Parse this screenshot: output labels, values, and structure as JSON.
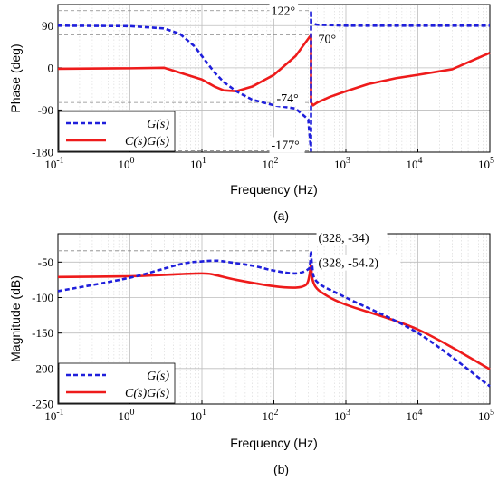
{
  "chart_data": [
    {
      "type": "line",
      "xlabel": "Frequency (Hz)",
      "ylabel": "Phase (deg)",
      "caption": "(a)",
      "x_scale": "log",
      "xlim": [
        0.1,
        100000
      ],
      "ylim": [
        -180,
        135
      ],
      "x_ticks": [
        0.1,
        1,
        10,
        100,
        1000,
        10000,
        100000
      ],
      "x_tick_labels": [
        "10^-1",
        "10^0",
        "10^1",
        "10^2",
        "10^3",
        "10^4",
        "10^5"
      ],
      "y_ticks": [
        -180,
        -90,
        0,
        90
      ],
      "y_tick_labels": [
        "-180",
        "-90",
        "0",
        "90"
      ],
      "grid": true,
      "legend_position": "bottom-left",
      "series": [
        {
          "name": "G(s)",
          "color": "#1f1fdb",
          "style": "dashed",
          "x": [
            0.1,
            1,
            3,
            5,
            8,
            10,
            15,
            20,
            30,
            50,
            100,
            200,
            300,
            328,
            328,
            330,
            400,
            1000,
            10000,
            100000
          ],
          "y": [
            90,
            89,
            84,
            72,
            45,
            25,
            -10,
            -30,
            -50,
            -68,
            -80,
            -87,
            -110,
            -177,
            122,
            95,
            92,
            90,
            90,
            90
          ]
        },
        {
          "name": "C(s)G(s)",
          "color": "#ee1b1b",
          "style": "solid",
          "x": [
            0.1,
            1,
            3,
            10,
            15,
            20,
            30,
            50,
            100,
            200,
            300,
            328,
            328,
            350,
            400,
            600,
            1000,
            2000,
            5000,
            10000,
            30000,
            100000
          ],
          "y": [
            -2,
            -1,
            0,
            -25,
            -40,
            -48,
            -50,
            -40,
            -15,
            25,
            62,
            70,
            -74,
            -80,
            -74,
            -62,
            -50,
            -35,
            -22,
            -15,
            -3,
            32
          ]
        }
      ],
      "annotations": [
        {
          "text": "122°",
          "x": 328,
          "y": 122
        },
        {
          "text": "70°",
          "x": 328,
          "y": 70
        },
        {
          "text": "-74°",
          "x": 328,
          "y": -74
        },
        {
          "text": "-177°",
          "x": 328,
          "y": -177
        }
      ]
    },
    {
      "type": "line",
      "xlabel": "Frequency (Hz)",
      "ylabel": "Magnitude (dB)",
      "caption": "(b)",
      "x_scale": "log",
      "xlim": [
        0.1,
        100000
      ],
      "ylim": [
        -250,
        -10
      ],
      "x_ticks": [
        0.1,
        1,
        10,
        100,
        1000,
        10000,
        100000
      ],
      "x_tick_labels": [
        "10^-1",
        "10^0",
        "10^1",
        "10^2",
        "10^3",
        "10^4",
        "10^5"
      ],
      "y_ticks": [
        -250,
        -200,
        -150,
        -100,
        -50
      ],
      "y_tick_labels": [
        "-250",
        "-200",
        "-150",
        "-100",
        "-50"
      ],
      "grid": true,
      "legend_position": "bottom-left",
      "series": [
        {
          "name": "G(s)",
          "color": "#1f1fdb",
          "style": "dashed",
          "x": [
            0.1,
            1,
            5,
            10,
            15,
            20,
            50,
            100,
            200,
            300,
            320,
            328,
            340,
            400,
            1000,
            10000,
            100000
          ],
          "y": [
            -91,
            -72,
            -53,
            -49,
            -48,
            -49,
            -55,
            -62,
            -66,
            -60,
            -50,
            -34,
            -55,
            -78,
            -100,
            -150,
            -225
          ],
          "smooth": true
        },
        {
          "name": "C(s)G(s)",
          "color": "#ee1b1b",
          "style": "solid",
          "x": [
            0.1,
            1,
            3,
            10,
            15,
            30,
            100,
            200,
            280,
            310,
            328,
            340,
            380,
            500,
            1000,
            10000,
            100000
          ],
          "y": [
            -71,
            -70,
            -68,
            -66,
            -68,
            -75,
            -84,
            -86,
            -82,
            -70,
            -54.2,
            -72,
            -85,
            -95,
            -110,
            -145,
            -201
          ],
          "smooth": true
        }
      ],
      "annotations": [
        {
          "text": "(328, -34)",
          "x": 328,
          "y": -34
        },
        {
          "text": "(328, -54.2)",
          "x": 328,
          "y": -54.2
        }
      ]
    }
  ]
}
